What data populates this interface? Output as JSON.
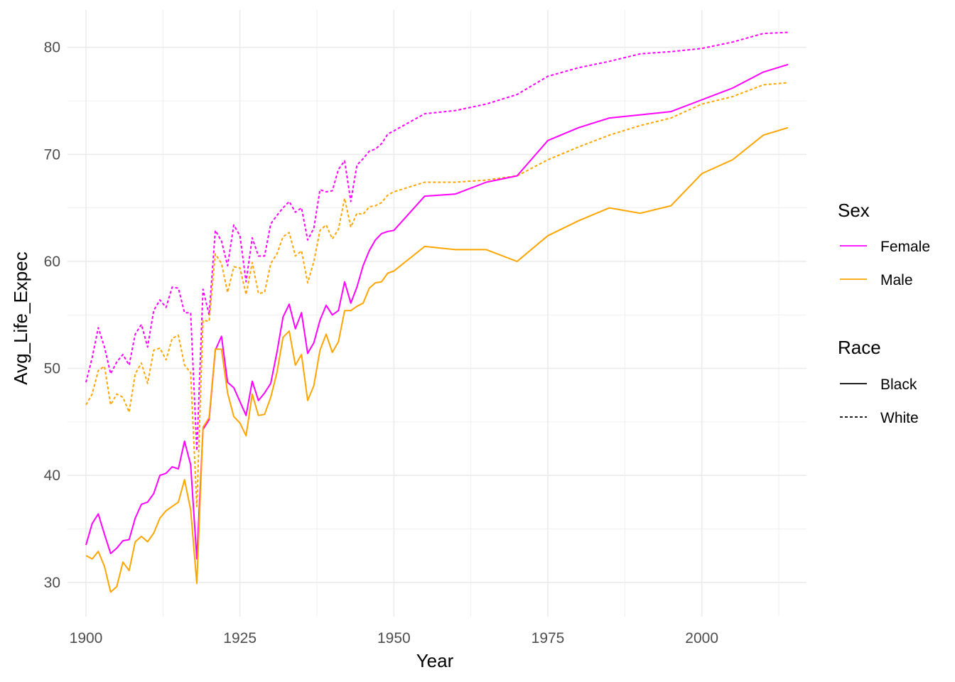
{
  "chart_data": {
    "type": "line",
    "xlabel": "Year",
    "ylabel": "Avg_Life_Expec",
    "xlim": [
      1897,
      2017
    ],
    "ylim": [
      26.8,
      83.5
    ],
    "x_ticks": [
      1900,
      1925,
      1950,
      1975,
      2000
    ],
    "y_ticks": [
      30,
      40,
      50,
      60,
      70,
      80
    ],
    "x_tick_labels": [
      "1900",
      "1925",
      "1950",
      "1975",
      "2000"
    ],
    "y_tick_labels": [
      "30",
      "40",
      "50",
      "60",
      "70",
      "80"
    ],
    "grid": true,
    "legend_position": "right",
    "colors": {
      "Female": "#ff00ff",
      "Male": "#ffa500",
      "grid": "#ebebeb"
    },
    "legend": {
      "sex": {
        "title": "Sex",
        "entries": [
          "Female",
          "Male"
        ]
      },
      "race": {
        "title": "Race",
        "entries": [
          "Black",
          "White"
        ]
      }
    },
    "series": [
      {
        "sex": "Female",
        "race": "White",
        "dash": "dashed",
        "x": [
          1900,
          1901,
          1902,
          1903,
          1904,
          1905,
          1906,
          1907,
          1908,
          1909,
          1910,
          1911,
          1912,
          1913,
          1914,
          1915,
          1916,
          1917,
          1918,
          1919,
          1920,
          1921,
          1922,
          1923,
          1924,
          1925,
          1926,
          1927,
          1928,
          1929,
          1930,
          1931,
          1932,
          1933,
          1934,
          1935,
          1936,
          1937,
          1938,
          1939,
          1940,
          1941,
          1942,
          1943,
          1944,
          1945,
          1946,
          1947,
          1948,
          1949,
          1950,
          1955,
          1960,
          1965,
          1970,
          1975,
          1980,
          1985,
          1990,
          1995,
          2000,
          2005,
          2010,
          2014
        ],
        "values": [
          48.7,
          51.0,
          53.8,
          52.0,
          49.5,
          50.6,
          51.3,
          50.3,
          53.2,
          54.1,
          52.0,
          55.4,
          56.4,
          55.7,
          57.6,
          57.5,
          55.2,
          55.2,
          42.3,
          57.4,
          55.0,
          62.9,
          61.9,
          59.6,
          63.4,
          62.4,
          58.1,
          62.2,
          60.5,
          60.5,
          63.5,
          64.3,
          65.0,
          65.6,
          64.6,
          65.0,
          62.0,
          63.1,
          66.7,
          66.5,
          66.6,
          68.6,
          69.4,
          65.6,
          69.0,
          69.6,
          70.3,
          70.5,
          71.0,
          71.9,
          72.2,
          73.8,
          74.1,
          74.7,
          75.6,
          77.3,
          78.1,
          78.7,
          79.4,
          79.6,
          79.9,
          80.5,
          81.3,
          81.4
        ]
      },
      {
        "sex": "Male",
        "race": "White",
        "dash": "dashed",
        "x": [
          1900,
          1901,
          1902,
          1903,
          1904,
          1905,
          1906,
          1907,
          1908,
          1909,
          1910,
          1911,
          1912,
          1913,
          1914,
          1915,
          1916,
          1917,
          1918,
          1919,
          1920,
          1921,
          1922,
          1923,
          1924,
          1925,
          1926,
          1927,
          1928,
          1929,
          1930,
          1931,
          1932,
          1933,
          1934,
          1935,
          1936,
          1937,
          1938,
          1939,
          1940,
          1941,
          1942,
          1943,
          1944,
          1945,
          1946,
          1947,
          1948,
          1949,
          1950,
          1955,
          1960,
          1965,
          1970,
          1975,
          1980,
          1985,
          1990,
          1995,
          2000,
          2005,
          2010,
          2014
        ],
        "values": [
          46.6,
          47.6,
          49.8,
          50.2,
          46.6,
          47.6,
          47.3,
          45.9,
          49.5,
          50.5,
          48.6,
          51.7,
          51.9,
          50.8,
          52.8,
          53.1,
          50.3,
          49.6,
          37.1,
          54.5,
          54.4,
          60.7,
          59.8,
          57.1,
          59.5,
          59.4,
          56.9,
          59.9,
          57.0,
          57.1,
          59.8,
          60.7,
          62.3,
          62.7,
          60.5,
          61.0,
          58.0,
          60.0,
          62.9,
          63.4,
          62.1,
          63.0,
          65.9,
          63.2,
          64.5,
          64.4,
          65.1,
          65.2,
          65.5,
          66.2,
          66.5,
          67.4,
          67.4,
          67.6,
          68.0,
          69.5,
          70.7,
          71.8,
          72.7,
          73.4,
          74.7,
          75.4,
          76.5,
          76.7
        ]
      },
      {
        "sex": "Female",
        "race": "Black",
        "dash": "solid",
        "x": [
          1900,
          1901,
          1902,
          1903,
          1904,
          1905,
          1906,
          1907,
          1908,
          1909,
          1910,
          1911,
          1912,
          1913,
          1914,
          1915,
          1916,
          1917,
          1918,
          1919,
          1920,
          1921,
          1922,
          1923,
          1924,
          1925,
          1926,
          1927,
          1928,
          1929,
          1930,
          1931,
          1932,
          1933,
          1934,
          1935,
          1936,
          1937,
          1938,
          1939,
          1940,
          1941,
          1942,
          1943,
          1944,
          1945,
          1946,
          1947,
          1948,
          1949,
          1950,
          1955,
          1960,
          1965,
          1970,
          1975,
          1980,
          1985,
          1990,
          1995,
          2000,
          2005,
          2010,
          2014
        ],
        "values": [
          33.5,
          35.5,
          36.4,
          34.5,
          32.7,
          33.2,
          33.9,
          34.0,
          36.0,
          37.3,
          37.5,
          38.3,
          40.0,
          40.2,
          40.8,
          40.6,
          43.2,
          41.0,
          32.2,
          44.3,
          45.2,
          51.7,
          53.0,
          48.7,
          48.2,
          46.9,
          45.6,
          48.8,
          47.0,
          47.7,
          48.6,
          51.5,
          54.8,
          56.0,
          53.7,
          55.2,
          51.4,
          52.4,
          54.5,
          55.9,
          55.0,
          55.4,
          58.1,
          56.1,
          57.6,
          59.6,
          61.0,
          62.0,
          62.6,
          62.8,
          62.9,
          66.1,
          66.3,
          67.4,
          68.0,
          71.3,
          72.5,
          73.4,
          73.7,
          74.0,
          75.1,
          76.2,
          77.7,
          78.4
        ]
      },
      {
        "sex": "Male",
        "race": "Black",
        "dash": "solid",
        "x": [
          1900,
          1901,
          1902,
          1903,
          1904,
          1905,
          1906,
          1907,
          1908,
          1909,
          1910,
          1911,
          1912,
          1913,
          1914,
          1915,
          1916,
          1917,
          1918,
          1919,
          1920,
          1921,
          1922,
          1923,
          1924,
          1925,
          1926,
          1927,
          1928,
          1929,
          1930,
          1931,
          1932,
          1933,
          1934,
          1935,
          1936,
          1937,
          1938,
          1939,
          1940,
          1941,
          1942,
          1943,
          1944,
          1945,
          1946,
          1947,
          1948,
          1949,
          1950,
          1955,
          1960,
          1965,
          1970,
          1975,
          1980,
          1985,
          1990,
          1995,
          2000,
          2005,
          2010,
          2014
        ],
        "values": [
          32.5,
          32.2,
          32.9,
          31.5,
          29.1,
          29.6,
          31.9,
          31.1,
          33.8,
          34.3,
          33.8,
          34.6,
          36.0,
          36.7,
          37.1,
          37.5,
          39.6,
          36.8,
          29.9,
          44.5,
          45.4,
          51.8,
          51.8,
          47.7,
          45.5,
          44.9,
          43.7,
          47.6,
          45.6,
          45.7,
          47.3,
          49.6,
          52.9,
          53.5,
          50.3,
          51.3,
          47.0,
          48.4,
          51.7,
          53.2,
          51.5,
          52.5,
          55.4,
          55.4,
          55.8,
          56.1,
          57.5,
          58.0,
          58.1,
          58.9,
          59.1,
          61.4,
          61.1,
          61.1,
          60.0,
          62.4,
          63.8,
          65.0,
          64.5,
          65.2,
          68.2,
          69.5,
          71.8,
          72.5
        ]
      }
    ]
  }
}
